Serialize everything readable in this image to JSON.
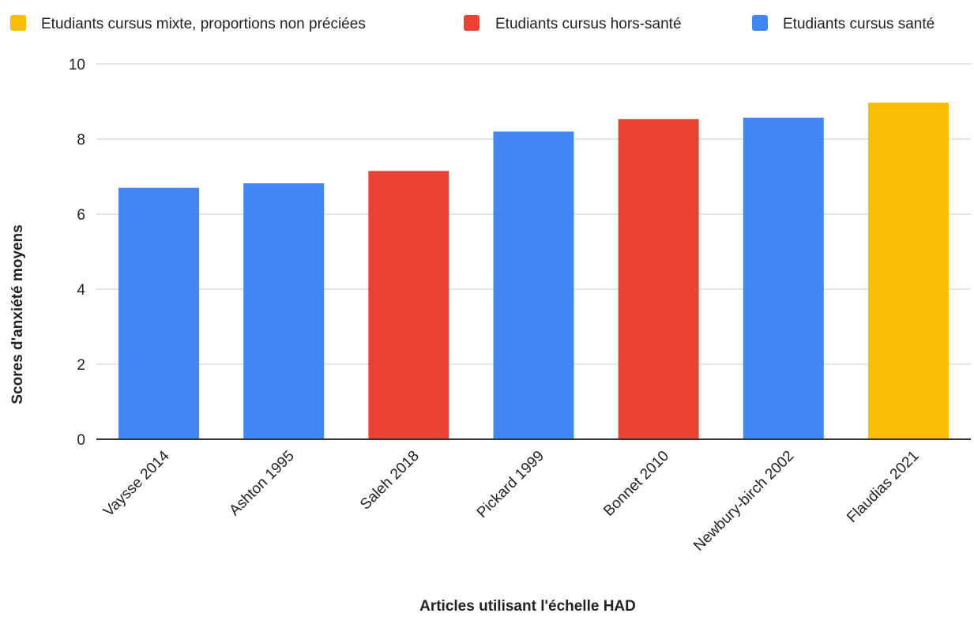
{
  "chart_data": {
    "type": "bar",
    "title": "",
    "xlabel": "Articles utilisant l'échelle HAD",
    "ylabel": "Scores d'anxiété moyens",
    "ylim": [
      0,
      10
    ],
    "yticks": [
      0,
      2,
      4,
      6,
      8,
      10
    ],
    "grid": true,
    "legend_position": "top",
    "legend": [
      {
        "name": "Etudiants cursus mixte, proportions non préciées",
        "color": "#fbbc04"
      },
      {
        "name": "Etudiants cursus hors-santé",
        "color": "#ea4335"
      },
      {
        "name": "Etudiants cursus santé",
        "color": "#4285f4"
      }
    ],
    "categories": [
      "Vaysse 2014",
      "Ashton 1995",
      "Saleh 2018",
      "Pickard 1999",
      "Bonnet 2010",
      "Newbury-birch 2002",
      "Flaudias 2021"
    ],
    "values": [
      6.7,
      6.82,
      7.15,
      8.2,
      8.53,
      8.57,
      8.97
    ],
    "bar_colors": [
      "#4285f4",
      "#4285f4",
      "#ea4335",
      "#4285f4",
      "#ea4335",
      "#4285f4",
      "#fbbc04"
    ]
  }
}
